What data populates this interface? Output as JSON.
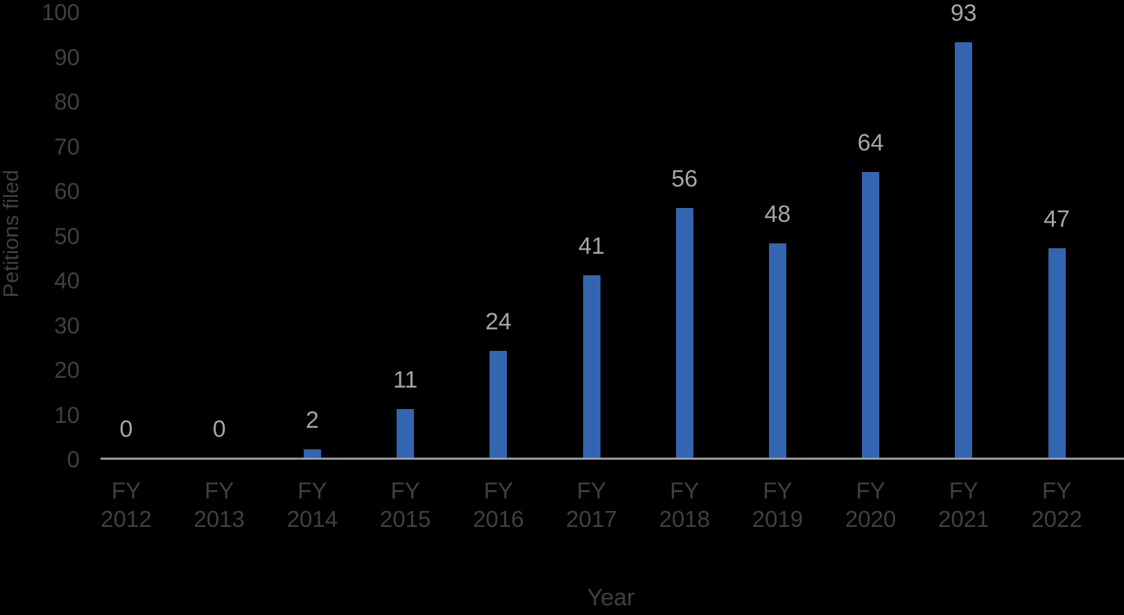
{
  "chart_data": {
    "type": "bar",
    "title": "",
    "xlabel": "Year",
    "ylabel": "Petitions filed",
    "categories": [
      "FY 2012",
      "FY 2013",
      "FY 2014",
      "FY 2015",
      "FY 2016",
      "FY 2017",
      "FY 2018",
      "FY 2019",
      "FY 2020",
      "FY 2021",
      "FY 2022"
    ],
    "values": [
      0,
      0,
      2,
      11,
      24,
      41,
      56,
      48,
      64,
      93,
      47
    ],
    "data_labels": [
      "0",
      "0",
      "2",
      "11",
      "24",
      "41",
      "56",
      "48",
      "64",
      "93",
      "47"
    ],
    "ylim": [
      0,
      100
    ],
    "yticks": [
      0,
      10,
      20,
      30,
      40,
      50,
      60,
      70,
      80,
      90,
      100
    ],
    "grid": false,
    "legend": false,
    "layout_hints": {
      "bar_category_label_lines": 2,
      "data_label_position": "outside-end"
    },
    "colors": {
      "background": "#000000",
      "bar": "#3465b1",
      "axis_line": "#9b9b9b",
      "axis_text": "#404040",
      "data_label": "#a6a6a6"
    }
  }
}
